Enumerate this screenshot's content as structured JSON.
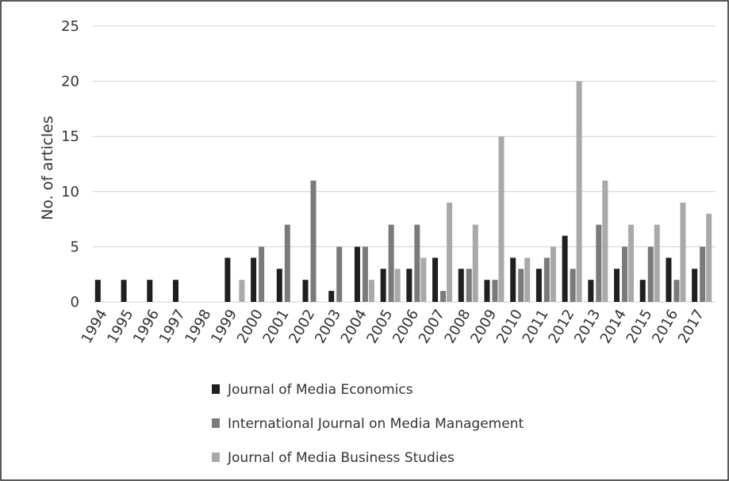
{
  "chart_data": {
    "type": "bar",
    "title": "",
    "xlabel": "",
    "ylabel": "No. of articles",
    "ylim": [
      0,
      25
    ],
    "yticks": [
      0,
      5,
      10,
      15,
      20,
      25
    ],
    "grid": true,
    "legend_position": "bottom",
    "categories": [
      "1994",
      "1995",
      "1996",
      "1997",
      "1998",
      "1999",
      "2000",
      "2001",
      "2002",
      "2003",
      "2004",
      "2005",
      "2006",
      "2007",
      "2008",
      "2009",
      "2010",
      "2011",
      "2012",
      "2013",
      "2014",
      "2015",
      "2016",
      "2017"
    ],
    "series": [
      {
        "name": "Journal of Media Economics",
        "color": "#1f1f1f",
        "values": [
          2,
          2,
          2,
          2,
          0,
          4,
          4,
          3,
          2,
          1,
          5,
          3,
          3,
          4,
          3,
          2,
          4,
          3,
          6,
          2,
          3,
          2,
          4,
          3
        ]
      },
      {
        "name": "International Journal on Media Management",
        "color": "#7a7a7a",
        "values": [
          0,
          0,
          0,
          0,
          0,
          0,
          5,
          7,
          11,
          5,
          5,
          7,
          7,
          1,
          3,
          2,
          3,
          4,
          3,
          7,
          5,
          5,
          2,
          5
        ]
      },
      {
        "name": "Journal of Media Business Studies",
        "color": "#a9a9a9",
        "values": [
          0,
          0,
          0,
          0,
          0,
          2,
          0,
          0,
          0,
          0,
          2,
          3,
          4,
          9,
          7,
          15,
          4,
          5,
          20,
          11,
          7,
          7,
          9,
          8
        ]
      }
    ]
  }
}
